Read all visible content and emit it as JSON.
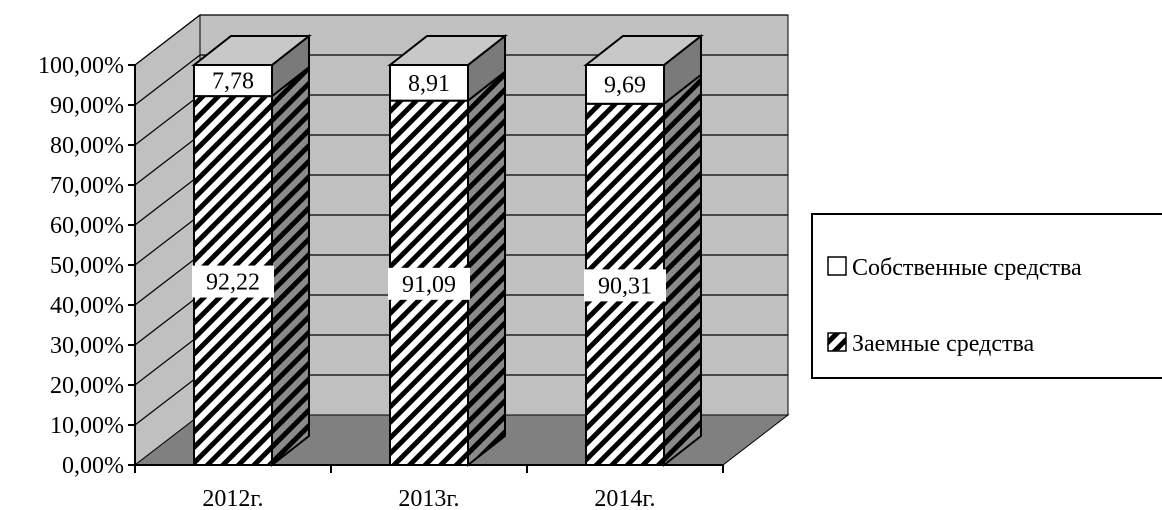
{
  "chart_data": {
    "type": "bar",
    "stacked": true,
    "percent_stacked": true,
    "three_d": true,
    "categories": [
      "2012г.",
      "2013г.",
      "2014г."
    ],
    "series": [
      {
        "name": "Собственные средства",
        "values": [
          7.78,
          8.91,
          9.69
        ],
        "value_labels": [
          "7,78",
          "8,91",
          "9,69"
        ],
        "fill": "white"
      },
      {
        "name": "Заемные средства",
        "values": [
          92.22,
          91.09,
          90.31
        ],
        "value_labels": [
          "92,22",
          "91,09",
          "90,31"
        ],
        "fill": "diagonal-hatch"
      }
    ],
    "y_ticks": [
      "0,00%",
      "10,00%",
      "20,00%",
      "30,00%",
      "40,00%",
      "50,00%",
      "60,00%",
      "70,00%",
      "80,00%",
      "90,00%",
      "100,00%"
    ],
    "ylim": [
      0,
      100
    ],
    "grid": true,
    "legend_position": "right",
    "title": "",
    "xlabel": "",
    "ylabel": ""
  },
  "colors": {
    "wall": "#c0c0c0",
    "floor": "#808080",
    "side": "#7a7a7a",
    "top": "#c8c8c8",
    "hatch": "#000000"
  }
}
